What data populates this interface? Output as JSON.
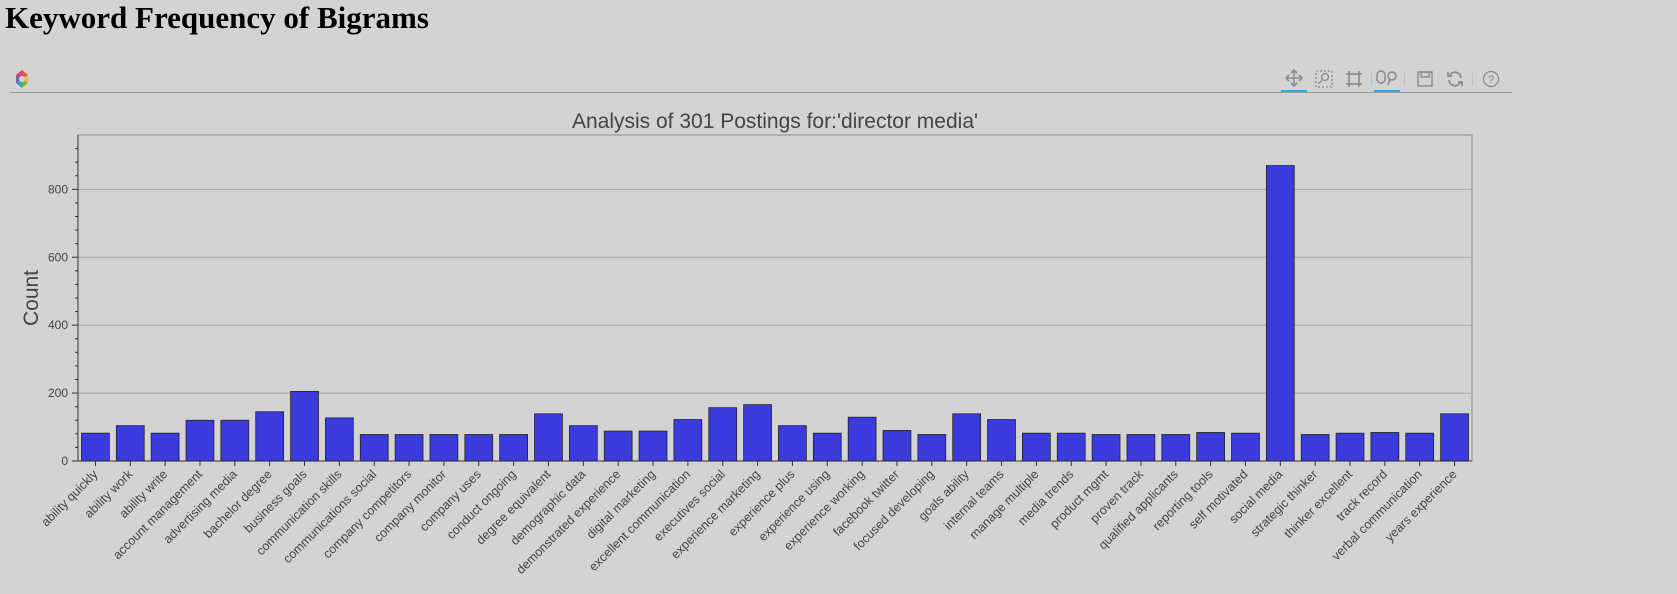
{
  "page": {
    "heading": "Keyword Frequency of Bigrams"
  },
  "toolbar": {
    "logo_icon": "bokeh-logo-icon",
    "tools": [
      {
        "icon": "pan-icon",
        "active": true
      },
      {
        "icon": "box-zoom-icon",
        "active": false
      },
      {
        "icon": "reset-view-icon",
        "active": false
      },
      {
        "icon": "wheel-zoom-icon",
        "active": true
      },
      {
        "icon": "save-icon",
        "active": false
      },
      {
        "icon": "refresh-icon",
        "active": false
      },
      {
        "icon": "help-icon",
        "active": false
      }
    ]
  },
  "chart_data": {
    "type": "bar",
    "title": "Analysis of 301 Postings for:'director media'",
    "xlabel": "",
    "ylabel": "Count",
    "ylim": [
      0,
      960
    ],
    "yticks": [
      0,
      200,
      400,
      600,
      800
    ],
    "grid": true,
    "bar_color": "#3333dd",
    "categories": [
      "ability quickly",
      "ability work",
      "ability write",
      "account management",
      "advertising media",
      "bachelor degree",
      "business goals",
      "communication skills",
      "communications social",
      "company competitors",
      "company monitor",
      "company uses",
      "conduct ongoing",
      "degree equivalent",
      "demographic data",
      "demonstrated experience",
      "digital marketing",
      "excellent communication",
      "executives social",
      "experience marketing",
      "experience plus",
      "experience using",
      "experience working",
      "facebook twitter",
      "focused developing",
      "goals ability",
      "internal teams",
      "manage multiple",
      "media trends",
      "product mgmt",
      "proven track",
      "qualified applicants",
      "reporting tools",
      "self motivated",
      "social media",
      "strategic thinker",
      "thinker excellent",
      "track record",
      "verbal communication",
      "years experience"
    ],
    "values": [
      82,
      104,
      82,
      120,
      120,
      145,
      205,
      127,
      78,
      78,
      78,
      78,
      78,
      139,
      104,
      88,
      88,
      122,
      157,
      166,
      104,
      82,
      129,
      90,
      78,
      139,
      122,
      82,
      82,
      78,
      78,
      78,
      84,
      82,
      870,
      78,
      82,
      84,
      82,
      139
    ]
  }
}
